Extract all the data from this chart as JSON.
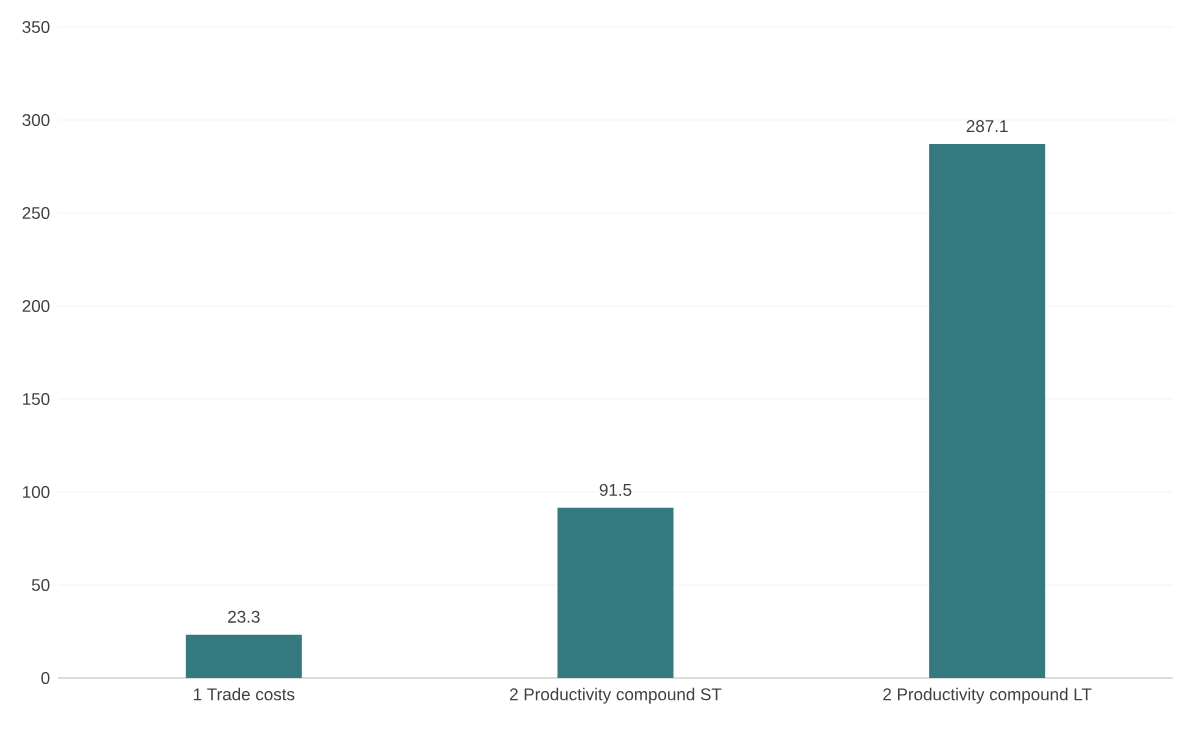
{
  "chart_data": {
    "type": "bar",
    "categories": [
      "1 Trade costs",
      "2 Productivity compound ST",
      "2 Productivity compound LT"
    ],
    "values": [
      23.3,
      91.5,
      287.1
    ],
    "color": "#347880",
    "ylim": [
      0,
      350
    ],
    "yticks": [
      0,
      50,
      100,
      150,
      200,
      250,
      300,
      350
    ],
    "grid": "y",
    "data_labels": true
  }
}
